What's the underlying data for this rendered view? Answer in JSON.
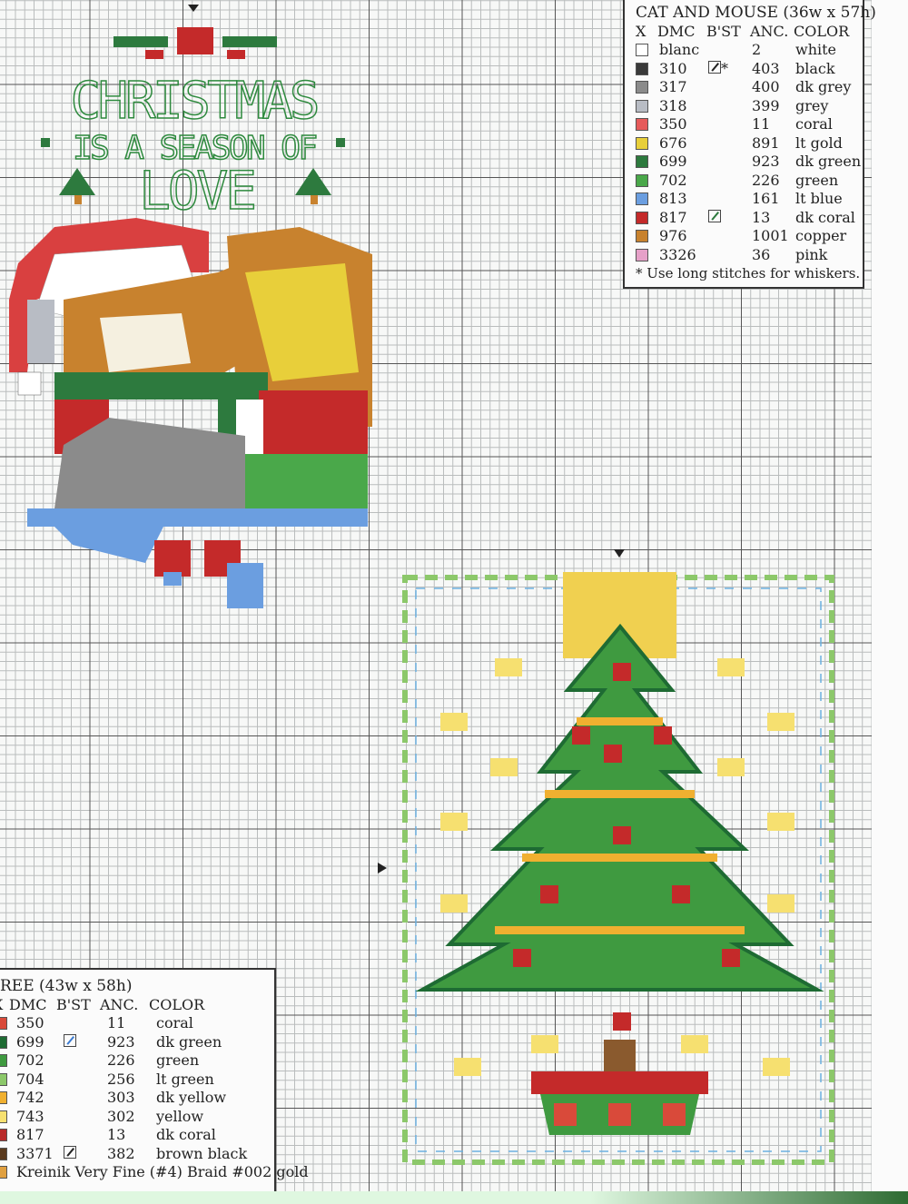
{
  "motif_text": {
    "line1": "CHRISTMAS",
    "line2": "IS A SEASON OF",
    "line3": "LOVE"
  },
  "cat_legend": {
    "title": "CAT AND MOUSE (36w x 57h)",
    "headers": {
      "x": "X",
      "dmc": "DMC",
      "bst": "B'ST",
      "anc": "ANC.",
      "color": "COLOR"
    },
    "rows": [
      {
        "dmc": "blanc",
        "bst": "",
        "anc": "2",
        "color": "white",
        "swatch": "#ffffff"
      },
      {
        "dmc": "310",
        "bst": "*",
        "anc": "403",
        "color": "black",
        "swatch": "#3a3a3a"
      },
      {
        "dmc": "317",
        "bst": "",
        "anc": "400",
        "color": "dk grey",
        "swatch": "#8b8b8b"
      },
      {
        "dmc": "318",
        "bst": "",
        "anc": "399",
        "color": "grey",
        "swatch": "#b8bcc4"
      },
      {
        "dmc": "350",
        "bst": "",
        "anc": "11",
        "color": "coral",
        "swatch": "#e65a5a"
      },
      {
        "dmc": "676",
        "bst": "",
        "anc": "891",
        "color": "lt gold",
        "swatch": "#e8cf3a"
      },
      {
        "dmc": "699",
        "bst": "",
        "anc": "923",
        "color": "dk green",
        "swatch": "#2d7a3e"
      },
      {
        "dmc": "702",
        "bst": "",
        "anc": "226",
        "color": "green",
        "swatch": "#4aa84a"
      },
      {
        "dmc": "813",
        "bst": "",
        "anc": "161",
        "color": "lt blue",
        "swatch": "#6b9ee0"
      },
      {
        "dmc": "817",
        "bst": "/",
        "anc": "13",
        "color": "dk coral",
        "swatch": "#c42a2a"
      },
      {
        "dmc": "976",
        "bst": "",
        "anc": "1001",
        "color": "copper",
        "swatch": "#c8822e"
      },
      {
        "dmc": "3326",
        "bst": "",
        "anc": "36",
        "color": "pink",
        "swatch": "#e6a0c8"
      }
    ],
    "note": "* Use long stitches for whiskers."
  },
  "tree_legend": {
    "title": "REE (43w x 58h)",
    "headers": {
      "x": "X",
      "dmc": "DMC",
      "bst": "B'ST",
      "anc": "ANC.",
      "color": "COLOR"
    },
    "rows": [
      {
        "dmc": "350",
        "bst": "",
        "anc": "11",
        "color": "coral",
        "swatch": "#d94a3a"
      },
      {
        "dmc": "699",
        "bst": "/",
        "anc": "923",
        "color": "dk green",
        "swatch": "#1e6b33"
      },
      {
        "dmc": "702",
        "bst": "",
        "anc": "226",
        "color": "green",
        "swatch": "#3f9a40"
      },
      {
        "dmc": "704",
        "bst": "",
        "anc": "256",
        "color": "lt green",
        "swatch": "#8cc86a"
      },
      {
        "dmc": "742",
        "bst": "",
        "anc": "303",
        "color": "dk yellow",
        "swatch": "#f0b030"
      },
      {
        "dmc": "743",
        "bst": "",
        "anc": "302",
        "color": "yellow",
        "swatch": "#f6e070"
      },
      {
        "dmc": "817",
        "bst": "",
        "anc": "13",
        "color": "dk coral",
        "swatch": "#b82a2a"
      },
      {
        "dmc": "3371",
        "bst": "/",
        "anc": "382",
        "color": "brown black",
        "swatch": "#5a3a1e"
      }
    ],
    "footer": "Kreinik Very Fine (#4) Braid #002 gold",
    "footer_swatch": "#e0a040"
  }
}
